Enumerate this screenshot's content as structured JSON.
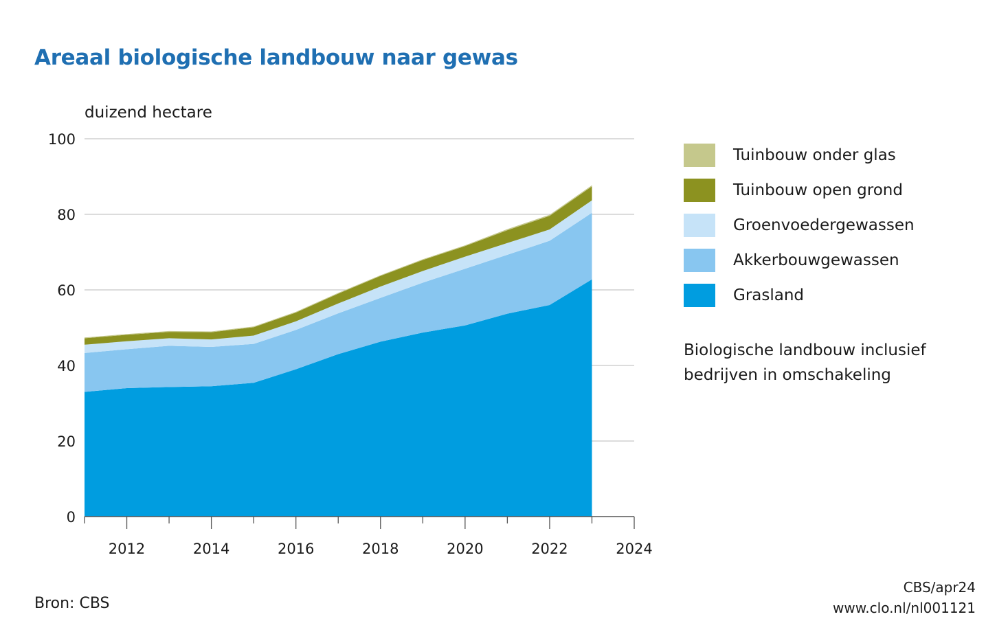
{
  "title": "Areaal biologische landbouw naar gewas",
  "unit_label": "duizend hectare",
  "note": [
    "Biologische landbouw inclusief",
    "bedrijven in omschakeling"
  ],
  "source": "Bron: CBS",
  "credits": [
    "CBS/apr24",
    "www.clo.nl/nl001121"
  ],
  "colors": {
    "tuinbouw_onder_glas": "#c5c88c",
    "tuinbouw_open_grond": "#8c9220",
    "groenvoedergewassen": "#c6e3f8",
    "akkerbouwgewassen": "#88c6f0",
    "grasland": "#009de0"
  },
  "chart_data": {
    "type": "area",
    "stacked": true,
    "x": [
      2011,
      2012,
      2013,
      2014,
      2015,
      2016,
      2017,
      2018,
      2019,
      2020,
      2021,
      2022,
      2023
    ],
    "series": [
      {
        "name": "Grasland",
        "color": "#009de0",
        "values": [
          33.0,
          34.0,
          34.3,
          34.5,
          35.4,
          39.0,
          43.0,
          46.3,
          48.7,
          50.6,
          53.7,
          56.0,
          62.8
        ]
      },
      {
        "name": "Akkerbouwgewassen",
        "color": "#88c6f0",
        "values": [
          10.3,
          10.3,
          10.9,
          10.4,
          10.3,
          10.4,
          10.8,
          11.6,
          13.2,
          15.0,
          15.6,
          17.0,
          17.6
        ]
      },
      {
        "name": "Groenvoedergewassen",
        "color": "#c6e3f8",
        "values": [
          2.2,
          2.1,
          2.0,
          2.0,
          2.2,
          2.3,
          2.6,
          3.0,
          3.1,
          3.2,
          3.1,
          3.0,
          3.3
        ]
      },
      {
        "name": "Tuinbouw open grond",
        "color": "#8c9220",
        "values": [
          1.7,
          1.7,
          1.7,
          1.9,
          2.2,
          2.3,
          2.6,
          2.8,
          2.9,
          2.8,
          3.4,
          3.6,
          3.7
        ]
      },
      {
        "name": "Tuinbouw onder glas",
        "color": "#c5c88c",
        "values": [
          0.2,
          0.2,
          0.2,
          0.2,
          0.2,
          0.2,
          0.2,
          0.2,
          0.2,
          0.2,
          0.3,
          0.3,
          0.3
        ]
      }
    ],
    "legend_order": [
      "Tuinbouw onder glas",
      "Tuinbouw open grond",
      "Groenvoedergewassen",
      "Akkerbouwgewassen",
      "Grasland"
    ],
    "ylabel": "duizend hectare",
    "ylim": [
      0,
      100
    ],
    "yticks": [
      0,
      20,
      40,
      60,
      80,
      100
    ],
    "xlim": [
      2011,
      2024
    ],
    "xticks": [
      2012,
      2014,
      2016,
      2018,
      2020,
      2022,
      2024
    ],
    "grid": true,
    "legend_position": "right"
  }
}
